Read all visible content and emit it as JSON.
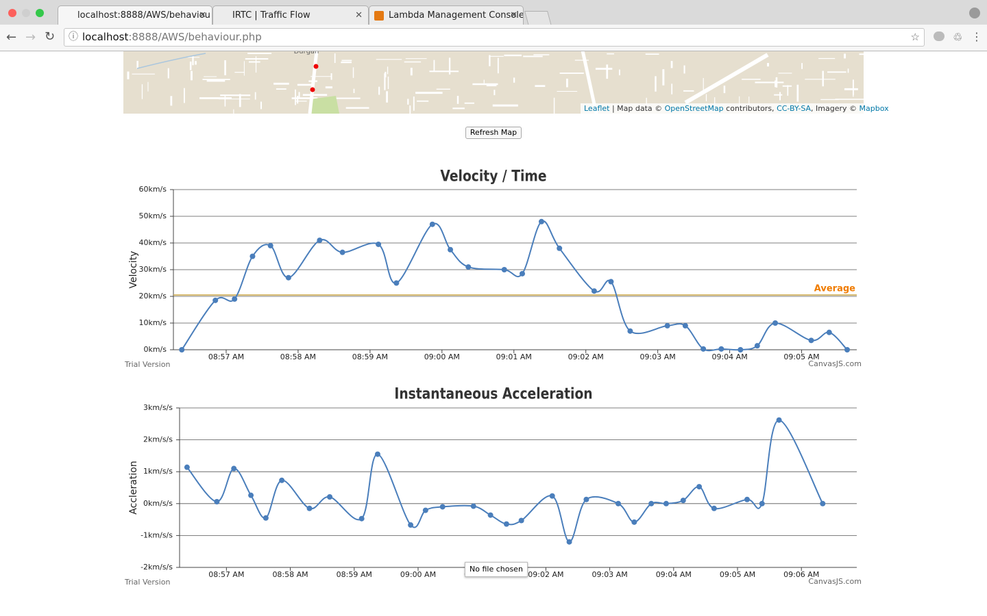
{
  "browser": {
    "tabs": [
      "localhost:8888/AWS/behaviou",
      "IRTC | Traffic Flow",
      "Lambda Management Console"
    ],
    "url_host": "localhost",
    "url_rest": ":8888/AWS/behaviour.php"
  },
  "map": {
    "place_label": "Durgan",
    "attribution": [
      {
        "text": "Leaflet",
        "link": true
      },
      {
        "text": " | Map data © ",
        "link": false
      },
      {
        "text": "OpenStreetMap",
        "link": true
      },
      {
        "text": " contributors, ",
        "link": false
      },
      {
        "text": "CC-BY-SA",
        "link": true
      },
      {
        "text": ", Imagery © ",
        "link": false
      },
      {
        "text": "Mapbox",
        "link": true
      }
    ]
  },
  "button": "Refresh Map",
  "tooltip": "No file chosen",
  "chart_data": [
    {
      "type": "line",
      "title": "Velocity / Time",
      "y_label": "Velocity",
      "footer_left": "Trial Version",
      "footer_right": "CanvasJS.com",
      "x": [
        "08:56:23",
        "08:56:51",
        "08:57:07",
        "08:57:22",
        "08:57:37",
        "08:57:52",
        "08:58:18",
        "08:58:37",
        "08:59:07",
        "08:59:22",
        "08:59:52",
        "09:00:07",
        "09:00:22",
        "09:00:52",
        "09:01:07",
        "09:01:23",
        "09:01:38",
        "09:02:07",
        "09:02:21",
        "09:02:37",
        "09:03:08",
        "09:03:23",
        "09:03:38",
        "09:03:53",
        "09:04:09",
        "09:04:23",
        "09:04:38",
        "09:05:08",
        "09:05:23",
        "09:05:38"
      ],
      "series": [
        {
          "name": "Velocity",
          "color": "#4a7ebb",
          "values": [
            0,
            18.5,
            19,
            35,
            39,
            27,
            41,
            36.5,
            39.5,
            25,
            47,
            37.5,
            31,
            30,
            28.5,
            48,
            38,
            22,
            25.5,
            7,
            9,
            9,
            0.3,
            0.3,
            0,
            1.5,
            10,
            3.5,
            6.5,
            0
          ]
        }
      ],
      "average": {
        "value": 20.5,
        "label": "Average",
        "color": "#f07c00"
      },
      "xlim": [
        "08:56:16",
        "09:05:46"
      ],
      "xticks": [
        {
          "value": "08:57:00",
          "label": "08:57 AM"
        },
        {
          "value": "08:58:00",
          "label": "08:58 AM"
        },
        {
          "value": "08:59:00",
          "label": "08:59 AM"
        },
        {
          "value": "09:00:00",
          "label": "09:00 AM"
        },
        {
          "value": "09:01:00",
          "label": "09:01 AM"
        },
        {
          "value": "09:02:00",
          "label": "09:02 AM"
        },
        {
          "value": "09:03:00",
          "label": "09:03 AM"
        },
        {
          "value": "09:04:00",
          "label": "09:04 AM"
        },
        {
          "value": "09:05:00",
          "label": "09:05 AM"
        }
      ],
      "ylim": [
        0,
        60
      ],
      "yticks": [
        {
          "value": 0,
          "label": "0km/s"
        },
        {
          "value": 10,
          "label": "10km/s"
        },
        {
          "value": 20,
          "label": "20km/s"
        },
        {
          "value": 30,
          "label": "30km/s"
        },
        {
          "value": 40,
          "label": "40km/s"
        },
        {
          "value": 50,
          "label": "50km/s"
        },
        {
          "value": 60,
          "label": "60km/s"
        }
      ],
      "grid": true
    },
    {
      "type": "line",
      "title": "Instantaneous Acceleration",
      "y_label": "Accleration",
      "footer_left": "Trial Version",
      "footer_right": "CanvasJS.com",
      "x": [
        "08:56:23",
        "08:56:51",
        "08:57:07",
        "08:57:23",
        "08:57:37",
        "08:57:52",
        "08:58:18",
        "08:58:37",
        "08:59:07",
        "08:59:22",
        "08:59:53",
        "09:00:07",
        "09:00:23",
        "09:00:52",
        "09:01:08",
        "09:01:23",
        "09:01:37",
        "09:02:06",
        "09:02:22",
        "09:02:38",
        "09:03:08",
        "09:03:23",
        "09:03:39",
        "09:03:53",
        "09:04:09",
        "09:04:24",
        "09:04:38",
        "09:05:09",
        "09:05:23",
        "09:05:39",
        "09:06:20"
      ],
      "series": [
        {
          "name": "Accleration",
          "color": "#4a7ebb",
          "values": [
            1.14,
            0.06,
            1.1,
            0.26,
            -0.45,
            0.73,
            -0.15,
            0.21,
            -0.47,
            1.55,
            -0.67,
            -0.21,
            -0.1,
            -0.08,
            -0.36,
            -0.64,
            -0.53,
            0.24,
            -1.2,
            0.13,
            0,
            -0.58,
            0,
            0,
            0.1,
            0.53,
            -0.15,
            0.13,
            0,
            2.62,
            0
          ]
        }
      ],
      "xlim": [
        "08:56:16",
        "09:06:52"
      ],
      "xticks": [
        {
          "value": "08:57:00",
          "label": "08:57 AM"
        },
        {
          "value": "08:58:00",
          "label": "08:58 AM"
        },
        {
          "value": "08:59:00",
          "label": "08:59 AM"
        },
        {
          "value": "09:00:00",
          "label": "09:00 AM"
        },
        {
          "value": "09:01:00",
          "label": "09:01 AM"
        },
        {
          "value": "09:02:00",
          "label": "09:02 AM"
        },
        {
          "value": "09:03:00",
          "label": "09:03 AM"
        },
        {
          "value": "09:04:00",
          "label": "09:04 AM"
        },
        {
          "value": "09:05:00",
          "label": "09:05 AM"
        },
        {
          "value": "09:06:00",
          "label": "09:06 AM"
        }
      ],
      "ylim": [
        -2,
        3
      ],
      "yticks": [
        {
          "value": -2,
          "label": "-2km/s/s"
        },
        {
          "value": -1,
          "label": "-1km/s/s"
        },
        {
          "value": 0,
          "label": "0km/s/s"
        },
        {
          "value": 1,
          "label": "1km/s/s"
        },
        {
          "value": 2,
          "label": "2km/s/s"
        },
        {
          "value": 3,
          "label": "3km/s/s"
        }
      ],
      "grid": true
    }
  ]
}
